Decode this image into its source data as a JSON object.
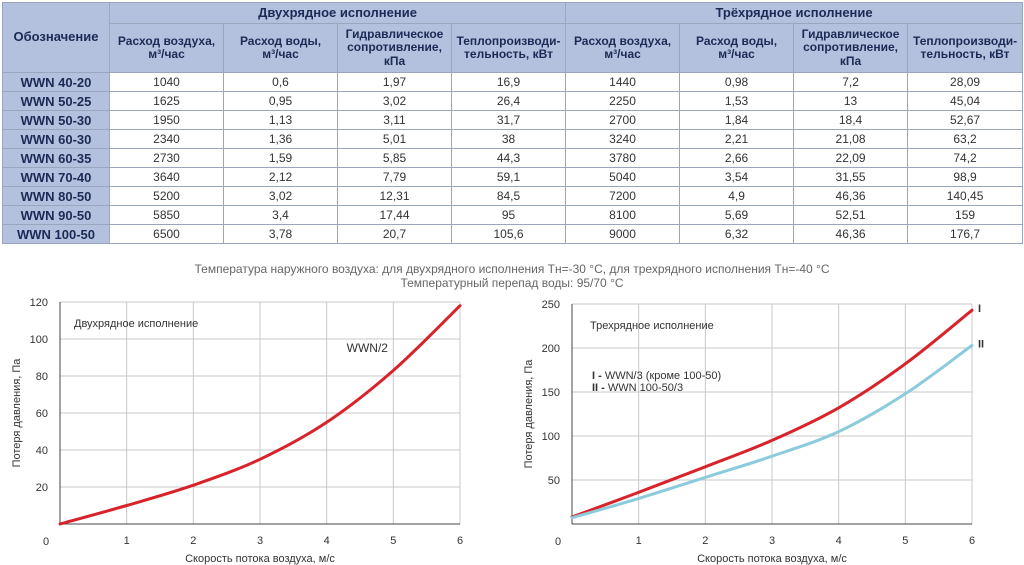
{
  "table": {
    "corner_label": "Обозначение",
    "group_two_row": "Двухрядное исполнение",
    "group_three_row": "Трёхрядное исполнение",
    "columns": [
      "Расход воздуха, м³/час",
      "Расход воды, м³/час",
      "Гидравлическое сопротивление, кПа",
      "Теплопроизводи-тельность, кВт"
    ],
    "columns_lines": [
      [
        "Расход воздуха,",
        "м³/час"
      ],
      [
        "Расход воды,",
        "м³/час"
      ],
      [
        "Гидравлическое",
        "сопротивление,",
        "кПа"
      ],
      [
        "Теплопроизводи-",
        "тельность, кВт"
      ]
    ],
    "rows": [
      {
        "model": "WWN 40-20",
        "two": [
          "1040",
          "0,6",
          "1,97",
          "16,9"
        ],
        "three": [
          "1440",
          "0,98",
          "7,2",
          "28,09"
        ]
      },
      {
        "model": "WWN 50-25",
        "two": [
          "1625",
          "0,95",
          "3,02",
          "26,4"
        ],
        "three": [
          "2250",
          "1,53",
          "13",
          "45,04"
        ]
      },
      {
        "model": "WWN 50-30",
        "two": [
          "1950",
          "1,13",
          "3,11",
          "31,7"
        ],
        "three": [
          "2700",
          "1,84",
          "18,4",
          "52,67"
        ]
      },
      {
        "model": "WWN 60-30",
        "two": [
          "2340",
          "1,36",
          "5,01",
          "38"
        ],
        "three": [
          "3240",
          "2,21",
          "21,08",
          "63,2"
        ]
      },
      {
        "model": "WWN 60-35",
        "two": [
          "2730",
          "1,59",
          "5,85",
          "44,3"
        ],
        "three": [
          "3780",
          "2,66",
          "22,09",
          "74,2"
        ]
      },
      {
        "model": "WWN 70-40",
        "two": [
          "3640",
          "2,12",
          "7,79",
          "59,1"
        ],
        "three": [
          "5040",
          "3,54",
          "31,55",
          "98,9"
        ]
      },
      {
        "model": "WWN 80-50",
        "two": [
          "5200",
          "3,02",
          "12,31",
          "84,5"
        ],
        "three": [
          "7200",
          "4,9",
          "46,36",
          "140,45"
        ]
      },
      {
        "model": "WWN 90-50",
        "two": [
          "5850",
          "3,4",
          "17,44",
          "95"
        ],
        "three": [
          "8100",
          "5,69",
          "52,51",
          "159"
        ]
      },
      {
        "model": "WWN 100-50",
        "two": [
          "6500",
          "3,78",
          "20,7",
          "105,6"
        ],
        "three": [
          "9000",
          "6,32",
          "46,36",
          "176,7"
        ]
      }
    ]
  },
  "notes": {
    "line1": "Температура наружного воздуха: для двухрядного исполнения Тн=-30 °С, для трехрядного исполнения Тн=-40 °С",
    "line2": "Температурный перепад воды: 95/70 °С"
  },
  "colors": {
    "header_bg": "#b3c1de",
    "header_text": "#1c2a55",
    "grid": "#c8c8c8",
    "red": "#d8232a",
    "cyan": "#8ccbdb"
  },
  "chart_data": [
    {
      "type": "line",
      "title": "Двухрядное исполнение",
      "xlabel": "Скорость потока воздуха, м/с",
      "ylabel": "Потеря давления, Па",
      "xlim": [
        0,
        6
      ],
      "ylim": [
        0,
        120
      ],
      "xticks": [
        0,
        1,
        2,
        3,
        4,
        5,
        6
      ],
      "yticks": [
        0,
        20,
        40,
        60,
        80,
        100,
        120
      ],
      "grid": true,
      "series": [
        {
          "name": "WWN/2",
          "color": "#d8232a",
          "x": [
            0,
            1,
            2,
            3,
            4,
            5,
            6
          ],
          "y": [
            0,
            10,
            21,
            35,
            55,
            83,
            118
          ]
        }
      ]
    },
    {
      "type": "line",
      "title": "Трехрядное исполнение",
      "xlabel": "Скорость потока воздуха, м/с",
      "ylabel": "Потеря давления, Па",
      "xlim": [
        0,
        6
      ],
      "ylim": [
        0,
        250
      ],
      "xticks": [
        0,
        1,
        2,
        3,
        4,
        5,
        6
      ],
      "yticks": [
        0,
        50,
        100,
        150,
        200,
        250
      ],
      "grid": true,
      "legend": [
        {
          "mark": "I",
          "label": "WWN/3 (кроме 100-50)"
        },
        {
          "mark": "II",
          "label": "WWN 100-50/3"
        }
      ],
      "series": [
        {
          "name": "I",
          "color": "#d8232a",
          "x": [
            0,
            1,
            2,
            3,
            4,
            5,
            6
          ],
          "y": [
            8,
            36,
            65,
            95,
            132,
            182,
            243
          ]
        },
        {
          "name": "II",
          "color": "#8ccbdb",
          "x": [
            0,
            1,
            2,
            3,
            4,
            5,
            6
          ],
          "y": [
            7,
            29,
            53,
            77,
            105,
            148,
            203
          ]
        }
      ]
    }
  ]
}
